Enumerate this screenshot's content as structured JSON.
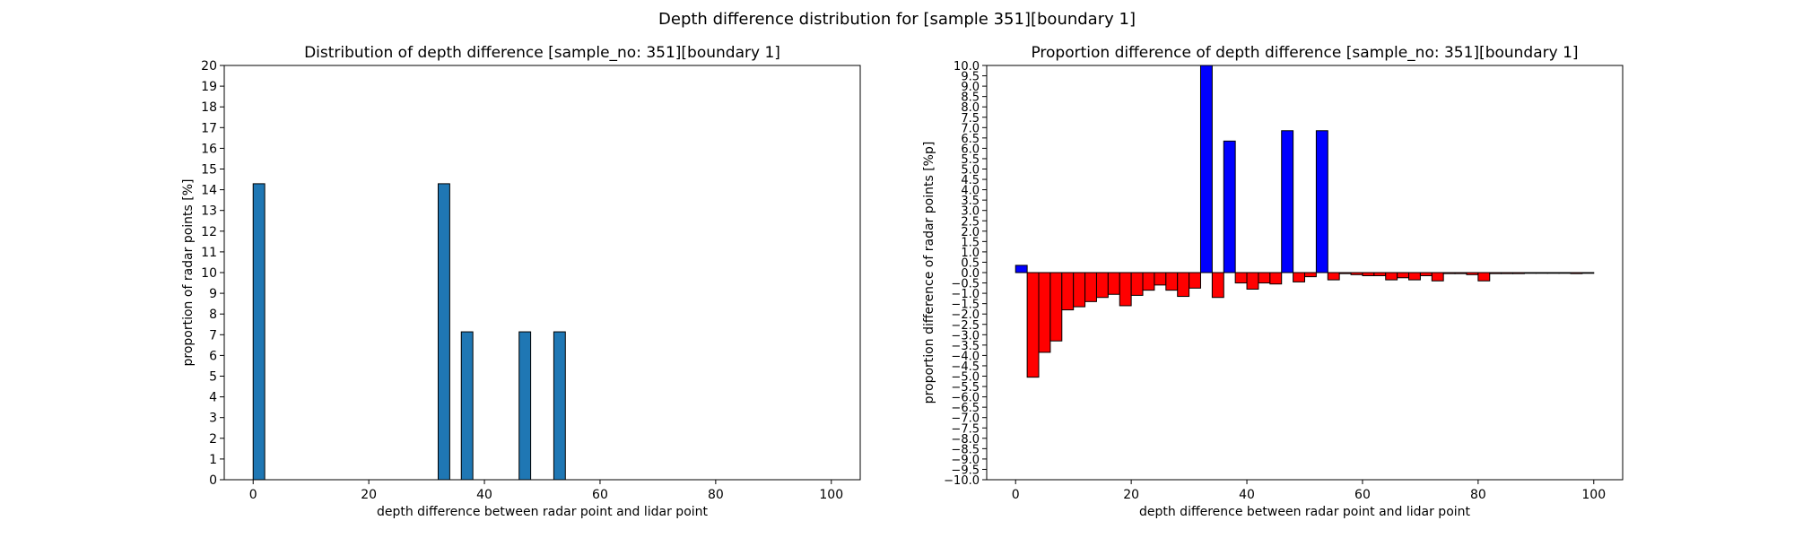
{
  "figure": {
    "title": "Depth difference distribution for [sample 351][boundary 1]"
  },
  "colors": {
    "left_bar": "#1f77b4",
    "positive": "#0000ff",
    "negative": "#ff0000",
    "edge": "#000000"
  },
  "chart_data": [
    {
      "type": "bar",
      "title": "Distribution of depth difference [sample_no: 351][boundary 1]",
      "xlabel": "depth difference between radar point and lidar point",
      "ylabel": "proportion of radar points [%]",
      "xlim": [
        -5,
        105
      ],
      "ylim": [
        0,
        20
      ],
      "xticks": [
        0,
        20,
        40,
        60,
        80,
        100
      ],
      "yticks": [
        0,
        1,
        2,
        3,
        4,
        5,
        6,
        7,
        8,
        9,
        10,
        11,
        12,
        13,
        14,
        15,
        16,
        17,
        18,
        19,
        20
      ],
      "bin_width": 2,
      "bins": [
        {
          "x": 1,
          "value": 14.29
        },
        {
          "x": 33,
          "value": 14.29
        },
        {
          "x": 37,
          "value": 7.14
        },
        {
          "x": 47,
          "value": 7.14
        },
        {
          "x": 53,
          "value": 7.14
        }
      ]
    },
    {
      "type": "bar",
      "title": "Proportion difference of depth difference [sample_no: 351][boundary 1]",
      "xlabel": "depth difference between radar point and lidar point",
      "ylabel": "proportion difference of radar points [%p]",
      "xlim": [
        -5,
        105
      ],
      "ylim": [
        -10,
        10
      ],
      "xticks": [
        0,
        20,
        40,
        60,
        80,
        100
      ],
      "yticks": [
        "10.0",
        "9.5",
        "9.0",
        "8.5",
        "8.0",
        "7.5",
        "7.0",
        "6.5",
        "6.0",
        "5.5",
        "5.0",
        "4.5",
        "4.0",
        "3.5",
        "3.0",
        "2.5",
        "2.0",
        "1.5",
        "1.0",
        "0.5",
        "0.0",
        "−0.5",
        "−1.0",
        "−1.5",
        "−2.0",
        "−2.5",
        "−3.0",
        "−3.5",
        "−4.0",
        "−4.5",
        "−5.0",
        "−5.5",
        "−6.0",
        "−6.5",
        "−7.0",
        "−7.5",
        "−8.0",
        "−8.5",
        "−9.0",
        "−9.5",
        "−10.0"
      ],
      "bin_width": 2,
      "x": [
        1,
        3,
        5,
        7,
        9,
        11,
        13,
        15,
        17,
        19,
        21,
        23,
        25,
        27,
        29,
        31,
        33,
        35,
        37,
        39,
        41,
        43,
        45,
        47,
        49,
        51,
        53,
        55,
        57,
        59,
        61,
        63,
        65,
        67,
        69,
        71,
        73,
        75,
        77,
        79,
        81,
        83,
        85,
        87,
        89,
        91,
        93,
        95,
        97,
        99
      ],
      "values": [
        0.35,
        -5.05,
        -3.85,
        -3.3,
        -1.8,
        -1.65,
        -1.4,
        -1.2,
        -1.05,
        -1.6,
        -1.1,
        -0.85,
        -0.6,
        -0.85,
        -1.15,
        -0.75,
        10.0,
        -1.2,
        6.35,
        -0.5,
        -0.8,
        -0.5,
        -0.55,
        6.85,
        -0.45,
        -0.2,
        6.85,
        -0.35,
        -0.05,
        -0.1,
        -0.15,
        -0.15,
        -0.35,
        -0.25,
        -0.35,
        -0.15,
        -0.4,
        -0.05,
        -0.05,
        -0.1,
        -0.4,
        -0.05,
        -0.05,
        -0.05,
        0.0,
        0.0,
        0.0,
        0.0,
        -0.05,
        0.0
      ]
    }
  ]
}
